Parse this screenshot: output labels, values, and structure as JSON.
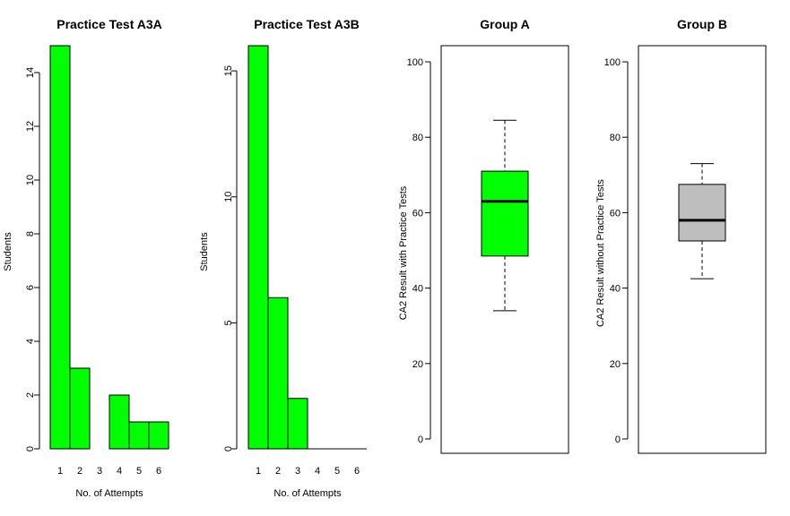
{
  "colors": {
    "green": "#00ff00",
    "gray": "#bebebe",
    "black": "#000000"
  },
  "chart_data": [
    {
      "type": "bar",
      "title": "Practice Test A3A",
      "xlabel": "No. of Attempts",
      "ylabel": "Students",
      "categories": [
        "1",
        "2",
        "3",
        "4",
        "5",
        "6"
      ],
      "values": [
        15,
        3,
        0,
        2,
        1,
        1
      ],
      "yticks": [
        0,
        2,
        4,
        6,
        8,
        10,
        12,
        14
      ],
      "ylim": [
        0,
        15
      ],
      "fill": "#00ff00"
    },
    {
      "type": "bar",
      "title": "Practice Test A3B",
      "xlabel": "No. of Attempts",
      "ylabel": "Students",
      "categories": [
        "1",
        "2",
        "3",
        "4",
        "5",
        "6"
      ],
      "values": [
        16,
        6,
        2,
        0,
        0,
        0
      ],
      "yticks": [
        0,
        5,
        10,
        15
      ],
      "ylim": [
        0,
        16
      ],
      "fill": "#00ff00"
    },
    {
      "type": "box",
      "title": "Group A",
      "xlabel": "",
      "ylabel": "CA2 Result with Practice Tests",
      "yticks": [
        0,
        20,
        40,
        60,
        80,
        100
      ],
      "ylim": [
        0,
        100
      ],
      "stats": {
        "min": 34,
        "q1": 48.5,
        "median": 63,
        "q3": 71,
        "max": 84.5
      },
      "fill": "#00ff00"
    },
    {
      "type": "box",
      "title": "Group B",
      "xlabel": "",
      "ylabel": "CA2 Result without Practice Tests",
      "yticks": [
        0,
        20,
        40,
        60,
        80,
        100
      ],
      "ylim": [
        0,
        100
      ],
      "stats": {
        "min": 42.5,
        "q1": 52.5,
        "median": 58,
        "q3": 67.5,
        "max": 73
      },
      "fill": "#bebebe"
    }
  ]
}
